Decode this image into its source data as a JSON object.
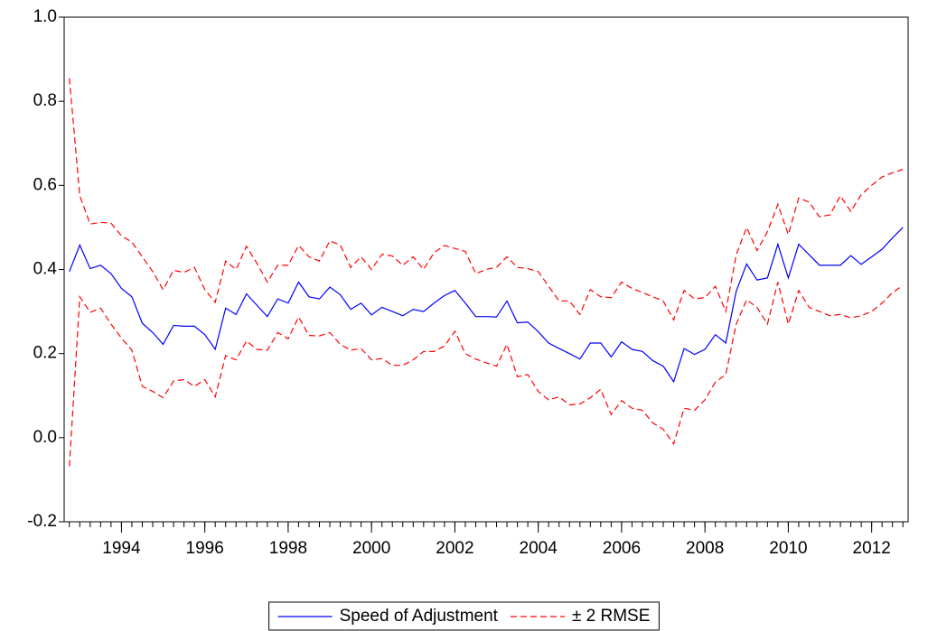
{
  "chart_data": {
    "type": "line",
    "x": [
      1992.75,
      1993,
      1993.25,
      1993.5,
      1993.75,
      1994,
      1994.25,
      1994.5,
      1994.75,
      1995,
      1995.25,
      1995.5,
      1995.75,
      1996,
      1996.25,
      1996.5,
      1996.75,
      1997,
      1997.25,
      1997.5,
      1997.75,
      1998,
      1998.25,
      1998.5,
      1998.75,
      1999,
      1999.25,
      1999.5,
      1999.75,
      2000,
      2000.25,
      2000.5,
      2000.75,
      2001,
      2001.25,
      2001.5,
      2001.75,
      2002,
      2002.25,
      2002.5,
      2002.75,
      2003,
      2003.25,
      2003.5,
      2003.75,
      2004,
      2004.25,
      2004.5,
      2004.75,
      2005,
      2005.25,
      2005.5,
      2005.75,
      2006,
      2006.25,
      2006.5,
      2006.75,
      2007,
      2007.25,
      2007.5,
      2007.75,
      2008,
      2008.25,
      2008.5,
      2008.75,
      2009,
      2009.25,
      2009.5,
      2009.75,
      2010,
      2010.25,
      2010.5,
      2010.75,
      2011,
      2011.25,
      2011.5,
      2011.75,
      2012,
      2012.25,
      2012.5,
      2012.75
    ],
    "series": [
      {
        "name": "Speed of Adjustment",
        "color": "#0000ff",
        "dash": false,
        "values": [
          0.395,
          0.458,
          0.402,
          0.41,
          0.39,
          0.355,
          0.335,
          0.272,
          0.25,
          0.222,
          0.267,
          0.265,
          0.265,
          0.245,
          0.21,
          0.308,
          0.293,
          0.342,
          0.315,
          0.288,
          0.33,
          0.32,
          0.37,
          0.335,
          0.33,
          0.358,
          0.34,
          0.305,
          0.32,
          0.292,
          0.31,
          0.3,
          0.29,
          0.305,
          0.3,
          0.32,
          0.338,
          0.35,
          0.32,
          0.288,
          0.288,
          0.287,
          0.325,
          0.273,
          0.275,
          0.252,
          0.225,
          0.212,
          0.2,
          0.187,
          0.225,
          0.225,
          0.192,
          0.228,
          0.21,
          0.205,
          0.183,
          0.17,
          0.133,
          0.212,
          0.198,
          0.21,
          0.245,
          0.225,
          0.348,
          0.413,
          0.375,
          0.38,
          0.46,
          0.38,
          0.46,
          0.435,
          0.41,
          0.41,
          0.41,
          0.433,
          0.412,
          0.43,
          0.448,
          0.475,
          0.5
        ]
      },
      {
        "name": "± 2 RMSE",
        "color": "#ff0000",
        "dash": true,
        "values": [
          0.855,
          0.575,
          0.508,
          0.512,
          0.51,
          0.48,
          0.465,
          0.43,
          0.395,
          0.352,
          0.398,
          0.393,
          0.405,
          0.352,
          0.322,
          0.42,
          0.4,
          0.455,
          0.415,
          0.37,
          0.41,
          0.41,
          0.457,
          0.43,
          0.42,
          0.468,
          0.458,
          0.405,
          0.43,
          0.4,
          0.436,
          0.432,
          0.41,
          0.43,
          0.4,
          0.44,
          0.457,
          0.45,
          0.443,
          0.39,
          0.4,
          0.405,
          0.43,
          0.405,
          0.402,
          0.395,
          0.36,
          0.325,
          0.325,
          0.293,
          0.352,
          0.335,
          0.333,
          0.37,
          0.355,
          0.345,
          0.335,
          0.325,
          0.28,
          0.35,
          0.33,
          0.333,
          0.36,
          0.3,
          0.435,
          0.5,
          0.445,
          0.49,
          0.555,
          0.483,
          0.57,
          0.56,
          0.525,
          0.53,
          0.575,
          0.538,
          0.578,
          0.6,
          0.62,
          0.63,
          0.638
        ]
      },
      {
        "color": "#ff0000",
        "dash": true,
        "values": [
          -0.068,
          0.335,
          0.298,
          0.308,
          0.27,
          0.237,
          0.208,
          0.122,
          0.11,
          0.095,
          0.135,
          0.138,
          0.122,
          0.138,
          0.097,
          0.195,
          0.185,
          0.23,
          0.21,
          0.208,
          0.25,
          0.235,
          0.287,
          0.243,
          0.242,
          0.25,
          0.222,
          0.208,
          0.212,
          0.185,
          0.188,
          0.172,
          0.172,
          0.185,
          0.205,
          0.205,
          0.218,
          0.253,
          0.2,
          0.187,
          0.178,
          0.17,
          0.222,
          0.145,
          0.15,
          0.11,
          0.09,
          0.097,
          0.078,
          0.08,
          0.095,
          0.115,
          0.055,
          0.088,
          0.07,
          0.065,
          0.035,
          0.02,
          -0.015,
          0.07,
          0.065,
          0.09,
          0.132,
          0.15,
          0.27,
          0.328,
          0.31,
          0.27,
          0.37,
          0.27,
          0.35,
          0.31,
          0.3,
          0.29,
          0.293,
          0.285,
          0.29,
          0.3,
          0.32,
          0.345,
          0.362
        ]
      }
    ],
    "xlim": [
      1992.625,
      2012.875
    ],
    "xticks": [
      1994,
      1996,
      1998,
      2000,
      2002,
      2004,
      2006,
      2008,
      2010,
      2012
    ],
    "ylim": [
      -0.2,
      1.0
    ],
    "yticks": [
      {
        "value": -0.2,
        "label": "-0.2"
      },
      {
        "value": 0,
        "label": "0.0"
      },
      0.2,
      0.4,
      0.6,
      0.8,
      {
        "value": 1,
        "label": "1.0"
      }
    ],
    "grid": false
  }
}
